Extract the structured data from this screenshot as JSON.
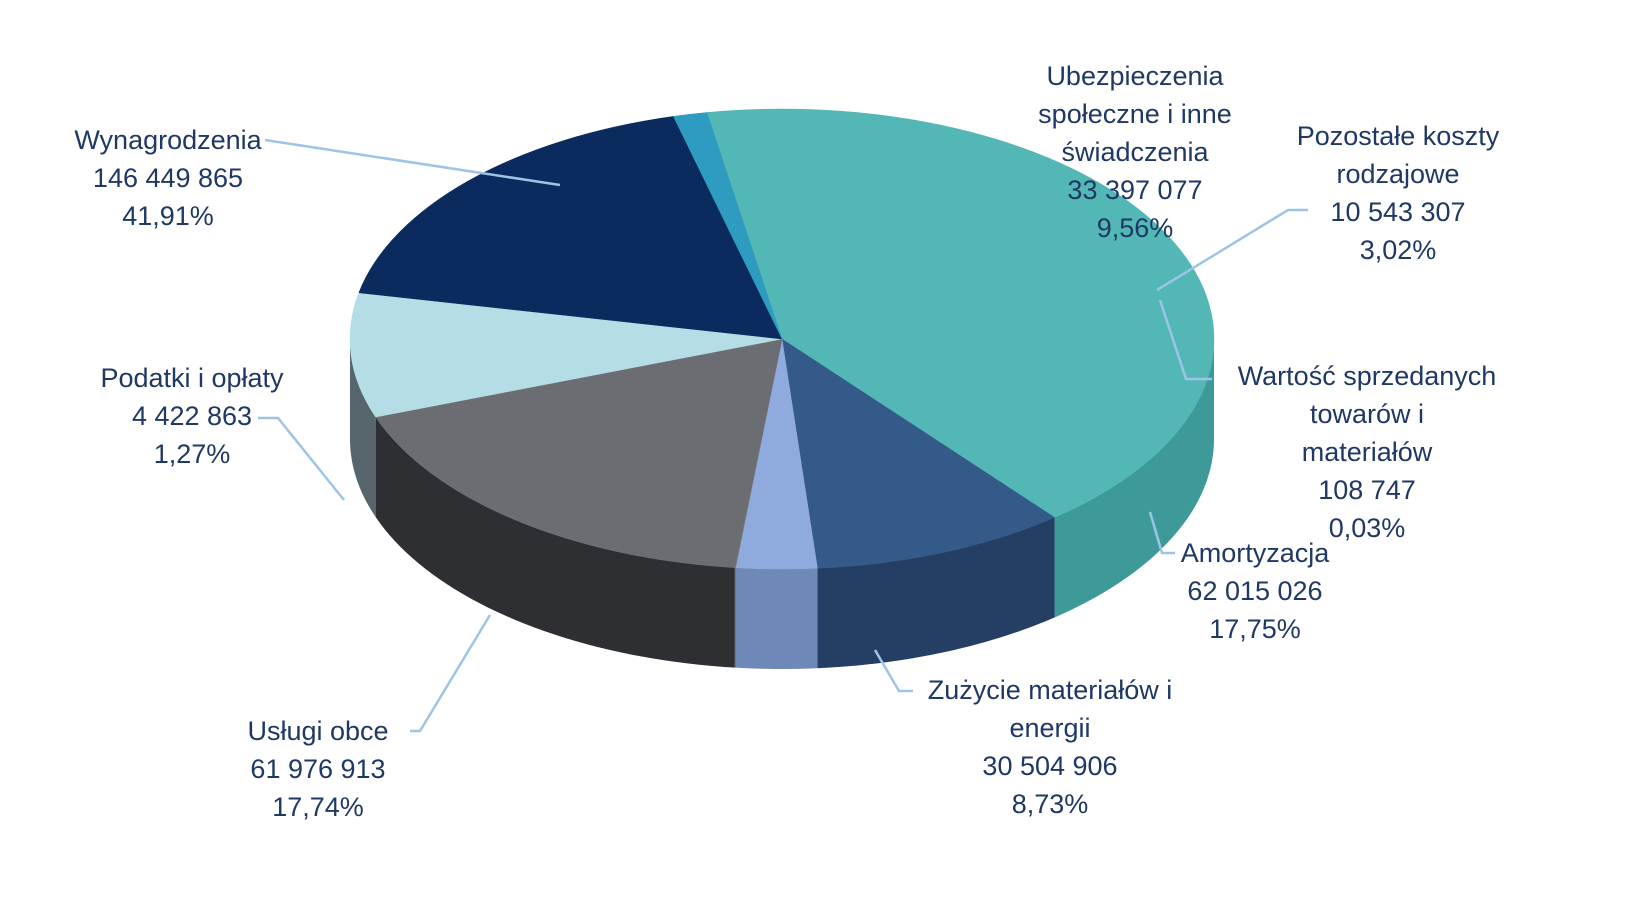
{
  "chart_data": {
    "type": "pie",
    "style": "3d-exploded-perspective",
    "label_color": "#1F3864",
    "leader_color": "#9DC3E6",
    "slices": [
      {
        "name": "Wynagrodzenia",
        "value": 146449865,
        "value_text": "146 449 865",
        "percent": 41.91,
        "percent_text": "41,91%",
        "color": "#52B7B5",
        "side_color": "#3E9A98",
        "label_lines": [
          "Wynagrodzenia",
          "146 449 865",
          "41,91%"
        ]
      },
      {
        "name": "Ubezpieczenia społeczne i inne świadczenia",
        "value": 33397077,
        "value_text": "33 397 077",
        "percent": 9.56,
        "percent_text": "9,56%",
        "color": "#345A8A",
        "side_color": "#243F63",
        "label_lines": [
          "Ubezpieczenia",
          "społeczne i inne",
          "świadczenia",
          "33 397 077",
          "9,56%"
        ]
      },
      {
        "name": "Pozostałe koszty rodzajowe",
        "value": 10543307,
        "value_text": "10 543 307",
        "percent": 3.02,
        "percent_text": "3,02%",
        "color": "#8FAADC",
        "side_color": "#6E88B8",
        "label_lines": [
          "Pozostałe koszty",
          "rodzajowe",
          "10 543 307",
          "3,02%"
        ]
      },
      {
        "name": "Wartość sprzedanych towarów i materiałów",
        "value": 108747,
        "value_text": "108 747",
        "percent": 0.03,
        "percent_text": "0,03%",
        "color": "#7F7F7F",
        "side_color": "#595959",
        "label_lines": [
          "Wartość sprzedanych",
          "towarów i",
          "materiałów",
          "108 747",
          "0,03%"
        ]
      },
      {
        "name": "Amortyzacja",
        "value": 62015026,
        "value_text": "62 015 026",
        "percent": 17.75,
        "percent_text": "17,75%",
        "color": "#6C6D73",
        "side_color": "#2E2F33",
        "label_lines": [
          "Amortyzacja",
          "62 015 026",
          "17,75%"
        ]
      },
      {
        "name": "Zużycie materiałów i energii",
        "value": 30504906,
        "value_text": "30 504 906",
        "percent": 8.73,
        "percent_text": "8,73%",
        "color": "#B4DDE5",
        "side_color": "#56666C",
        "label_lines": [
          "Zużycie materiałów i",
          "energii",
          "30 504 906",
          "8,73%"
        ]
      },
      {
        "name": "Usługi obce",
        "value": 61976913,
        "value_text": "61 976 913",
        "percent": 17.74,
        "percent_text": "17,74%",
        "color": "#0B2B5E",
        "side_color": "#07203F",
        "label_lines": [
          "Usługi obce",
          "61 976 913",
          "17,74%"
        ]
      },
      {
        "name": "Podatki i opłaty",
        "value": 4422863,
        "value_text": "4 422 863",
        "percent": 1.27,
        "percent_text": "1,27%",
        "color": "#2E9CC0",
        "side_color": "#1F7090",
        "label_lines": [
          "Podatki i opłaty",
          "4 422 863",
          "1,27%"
        ]
      }
    ]
  }
}
